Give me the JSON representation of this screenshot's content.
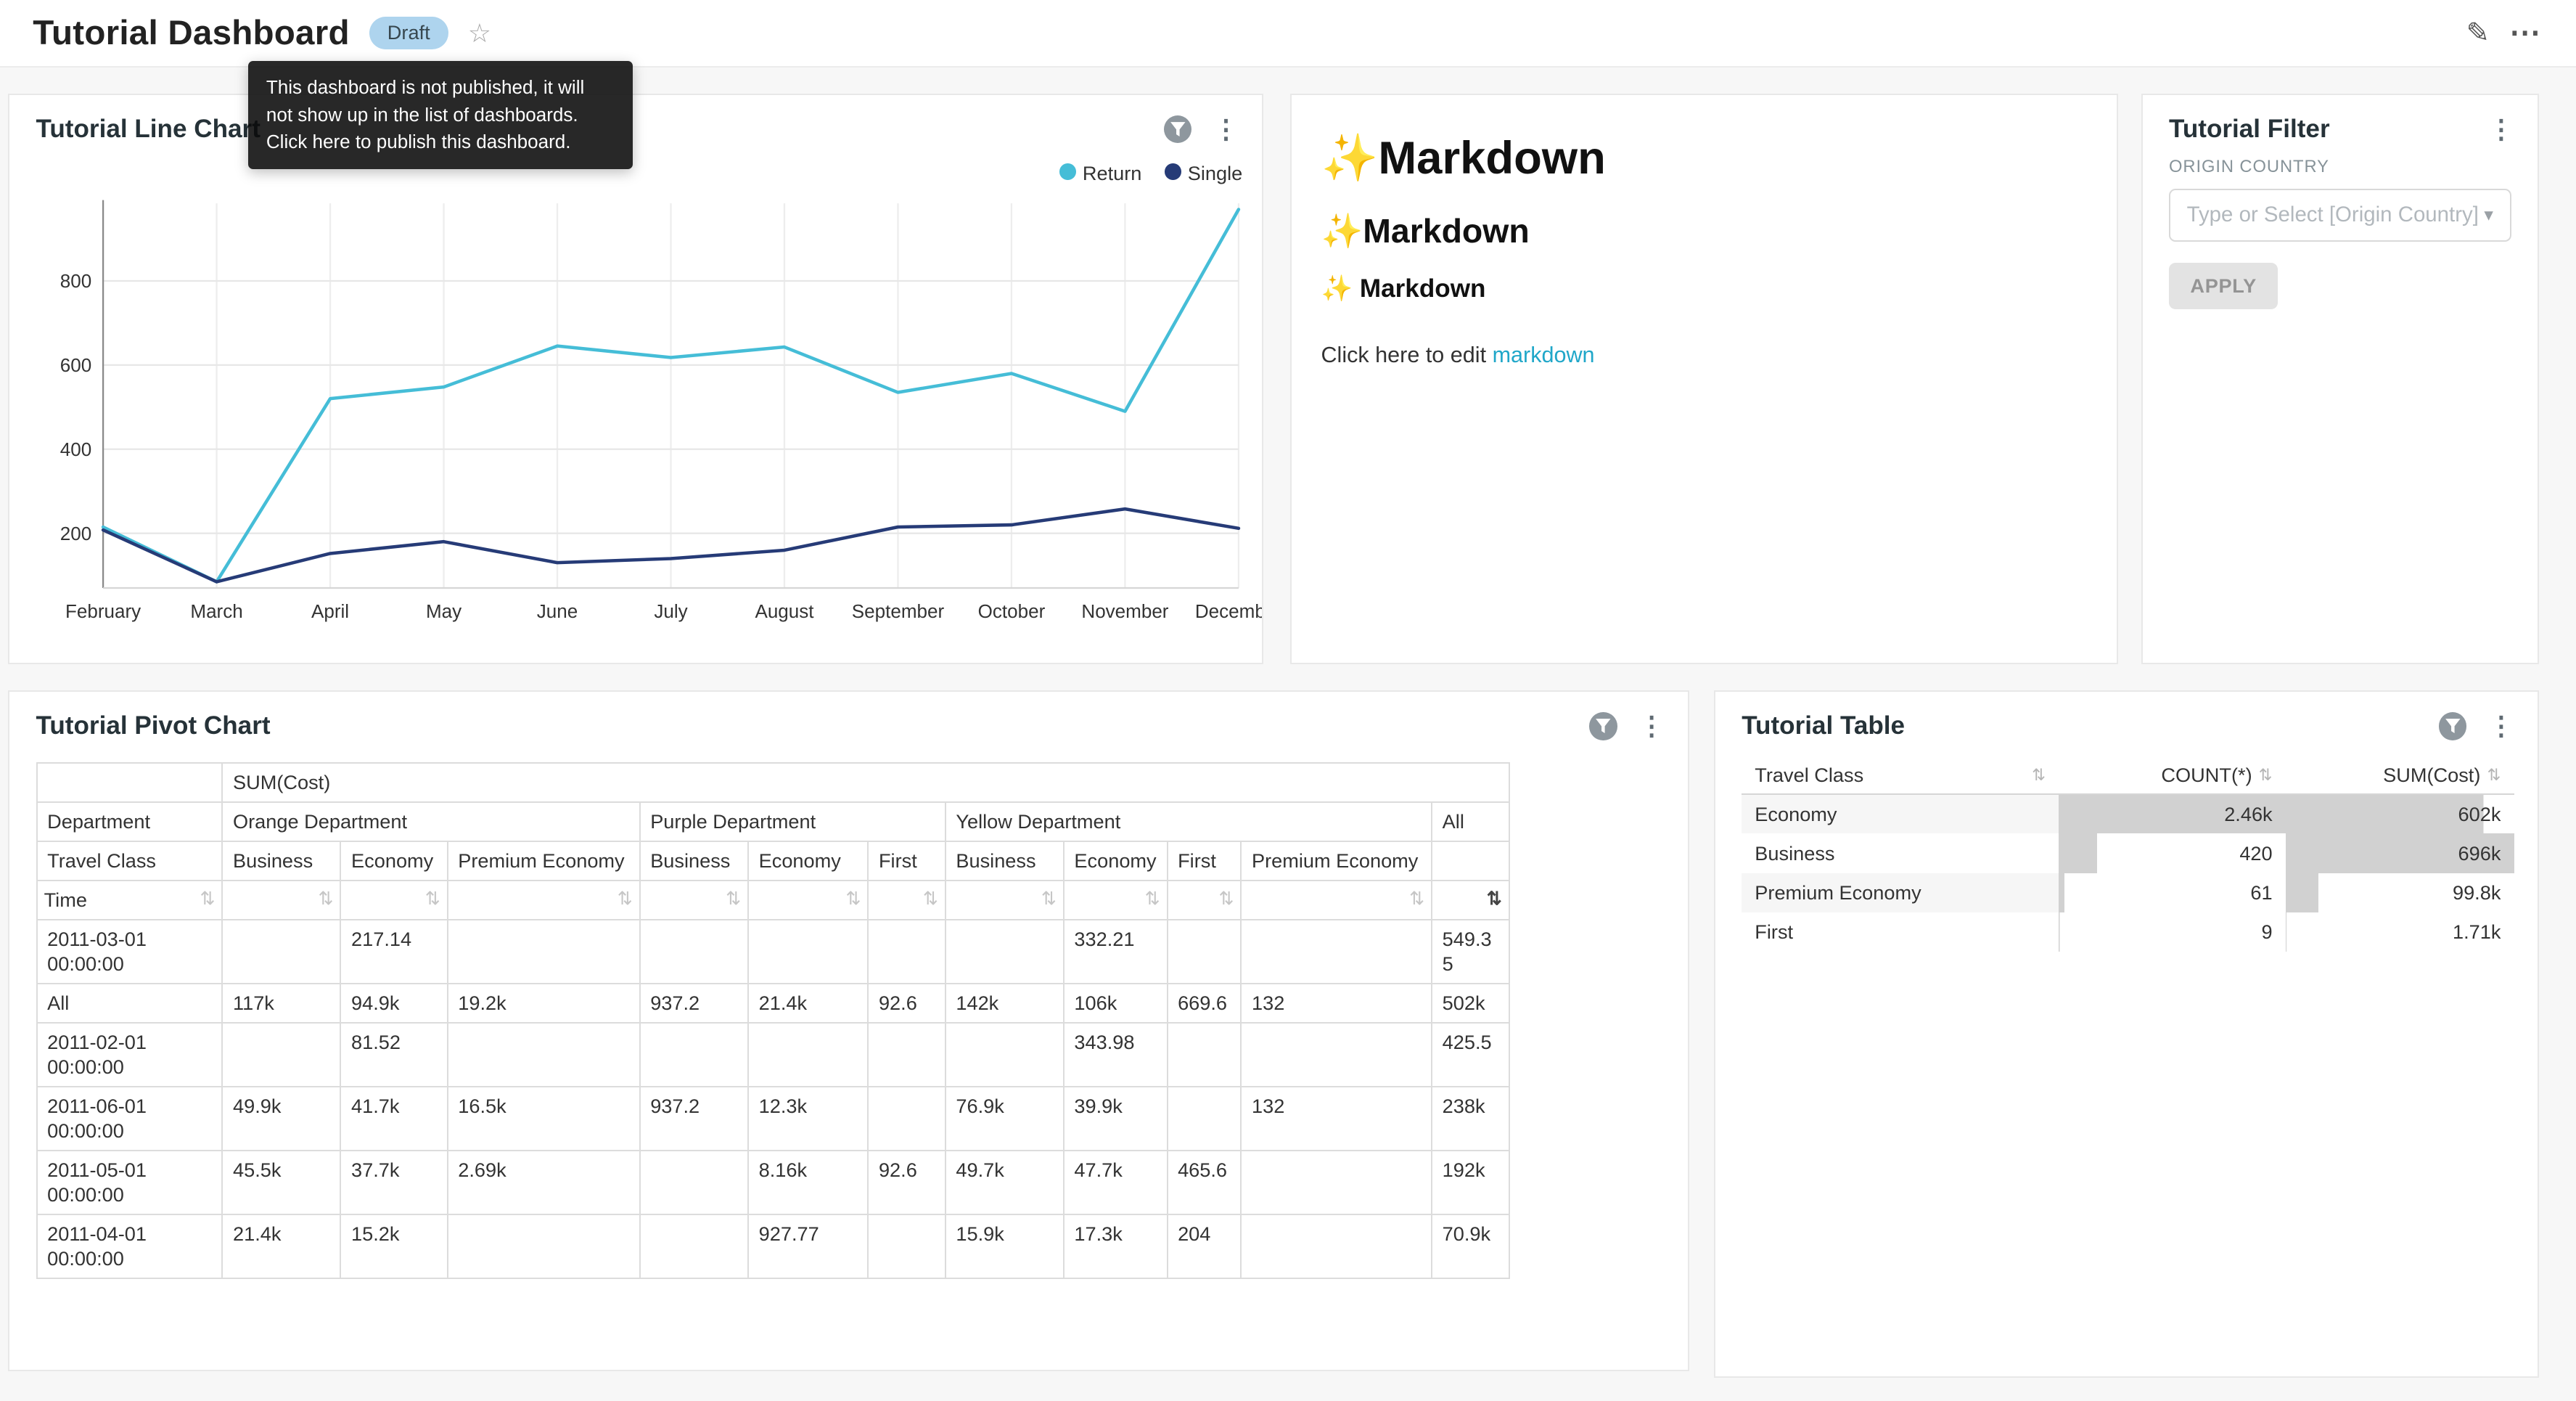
{
  "colors": {
    "page_bg": "#f7f7f7",
    "card_border": "#e8e8e8",
    "accent_link": "#20a7c9",
    "draft_badge_bg": "#aed4ee",
    "bar_fill": "#d1d1d1"
  },
  "icons": {
    "edit": "✎",
    "more_horizontal": "⋯",
    "more_vertical": "⋮",
    "star": "☆",
    "sort_both": "⇅",
    "caret_down": "▾",
    "table_sort": "⇅",
    "filter_funnel": "filter-funnel"
  },
  "header": {
    "title": "Tutorial Dashboard",
    "badge": "Draft",
    "tooltip": "This dashboard is not published, it will not show up in the list of dashboards. Click here to publish this dashboard."
  },
  "line_chart_card": {
    "title": "Tutorial Line Chart"
  },
  "chart_data": {
    "type": "line",
    "title": "Tutorial Line Chart",
    "categories": [
      "February",
      "March",
      "April",
      "May",
      "June",
      "July",
      "August",
      "September",
      "October",
      "November",
      "December"
    ],
    "series": [
      {
        "name": "Return",
        "color": "#45bdd7",
        "values": [
          215,
          85,
          520,
          548,
          645,
          618,
          643,
          535,
          580,
          490,
          970
        ]
      },
      {
        "name": "Single",
        "color": "#263b77",
        "values": [
          208,
          85,
          152,
          180,
          130,
          140,
          160,
          215,
          220,
          258,
          212
        ]
      }
    ],
    "ylim": [
      70,
      1000
    ],
    "yticks": [
      200,
      400,
      600,
      800
    ],
    "grid": true,
    "legend_position": "top-right"
  },
  "markdown_card": {
    "h1": "✨Markdown",
    "h2": "✨Markdown",
    "h3": "✨ Markdown",
    "footer_text": "Click here to edit ",
    "footer_link": "markdown"
  },
  "filter_card": {
    "title": "Tutorial Filter",
    "field_label": "ORIGIN COUNTRY",
    "select_placeholder": "Type or Select [Origin Country]",
    "apply_label": "APPLY"
  },
  "pivot_card": {
    "title": "Tutorial Pivot Chart",
    "metric_header": "SUM(Cost)",
    "row1_label": "Department",
    "row2_label": "Travel Class",
    "row3_label": "Time",
    "groups": [
      {
        "label": "Orange Department",
        "cols": [
          "Business",
          "Economy",
          "Premium Economy"
        ]
      },
      {
        "label": "Purple Department",
        "cols": [
          "Business",
          "Economy",
          "First"
        ]
      },
      {
        "label": "Yellow Department",
        "cols": [
          "Business",
          "Economy",
          "First",
          "Premium Economy"
        ]
      },
      {
        "label": "All",
        "cols": [
          ""
        ]
      }
    ],
    "rows": [
      {
        "label": "2011-03-01 00:00:00",
        "values": [
          "",
          "217.14",
          "",
          "",
          "",
          "",
          "",
          "332.21",
          "",
          "",
          "549.35"
        ]
      },
      {
        "label": "All",
        "values": [
          "117k",
          "94.9k",
          "19.2k",
          "937.2",
          "21.4k",
          "92.6",
          "142k",
          "106k",
          "669.6",
          "132",
          "502k"
        ]
      },
      {
        "label": "2011-02-01 00:00:00",
        "values": [
          "",
          "81.52",
          "",
          "",
          "",
          "",
          "",
          "343.98",
          "",
          "",
          "425.5"
        ]
      },
      {
        "label": "2011-06-01 00:00:00",
        "values": [
          "49.9k",
          "41.7k",
          "16.5k",
          "937.2",
          "12.3k",
          "",
          "76.9k",
          "39.9k",
          "",
          "132",
          "238k"
        ]
      },
      {
        "label": "2011-05-01 00:00:00",
        "values": [
          "45.5k",
          "37.7k",
          "2.69k",
          "",
          "8.16k",
          "92.6",
          "49.7k",
          "47.7k",
          "465.6",
          "",
          "192k"
        ]
      },
      {
        "label": "2011-04-01 00:00:00",
        "values": [
          "21.4k",
          "15.2k",
          "",
          "",
          "927.77",
          "",
          "15.9k",
          "17.3k",
          "204",
          "",
          "70.9k"
        ]
      }
    ]
  },
  "table_card": {
    "title": "Tutorial Table",
    "columns": [
      "Travel Class",
      "COUNT(*)",
      "SUM(Cost)"
    ],
    "rows": [
      {
        "travel_class": "Economy",
        "count": "2.46k",
        "count_pct": 100,
        "sum": "602k",
        "sum_pct": 86.5
      },
      {
        "travel_class": "Business",
        "count": "420",
        "count_pct": 17,
        "sum": "696k",
        "sum_pct": 100
      },
      {
        "travel_class": "Premium Economy",
        "count": "61",
        "count_pct": 2.5,
        "sum": "99.8k",
        "sum_pct": 14.3
      },
      {
        "travel_class": "First",
        "count": "9",
        "count_pct": 0.4,
        "sum": "1.71k",
        "sum_pct": 0.3
      }
    ]
  }
}
